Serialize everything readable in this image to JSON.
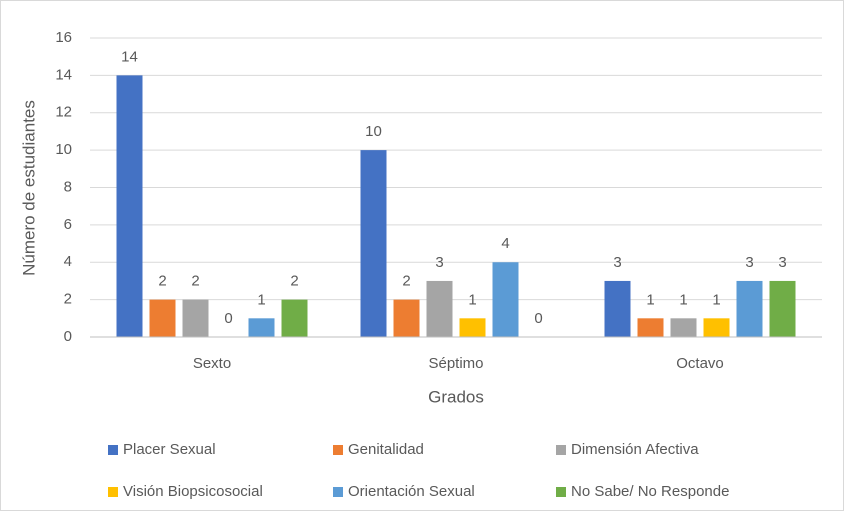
{
  "chart_data": {
    "type": "bar",
    "y_label": "Número de estudiantes",
    "x_label": "Grados",
    "categories": [
      "Sexto",
      "Séptimo",
      "Octavo"
    ],
    "series": [
      {
        "name": "Placer Sexual",
        "color": "#4472c4",
        "values": [
          14,
          10,
          3
        ]
      },
      {
        "name": "Genitalidad",
        "color": "#ed7d31",
        "values": [
          2,
          2,
          1
        ]
      },
      {
        "name": "Dimensión Afectiva",
        "color": "#a5a5a5",
        "values": [
          2,
          3,
          1
        ]
      },
      {
        "name": "Visión Biopsicosocial",
        "color": "#ffc000",
        "values": [
          0,
          1,
          1
        ]
      },
      {
        "name": "Orientación Sexual",
        "color": "#5b9bd5",
        "values": [
          1,
          4,
          3
        ]
      },
      {
        "name": "No Sabe/ No Responde",
        "color": "#70ad47",
        "values": [
          2,
          0,
          3
        ]
      }
    ],
    "ylim": [
      0,
      16
    ],
    "yticks": [
      0,
      2,
      4,
      6,
      8,
      10,
      12,
      14,
      16
    ],
    "grid": true,
    "legend": "bottom",
    "data_labels": true
  }
}
